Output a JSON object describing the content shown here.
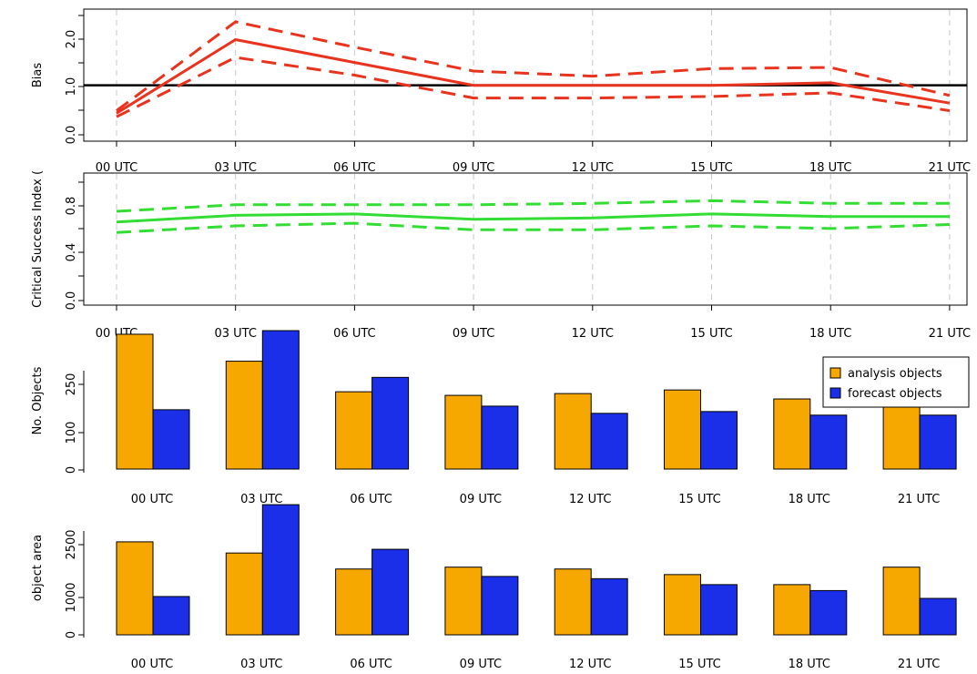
{
  "chart_data": [
    {
      "type": "line",
      "ylabel": "Bias",
      "x": [
        "00 UTC",
        "03 UTC",
        "06 UTC",
        "09 UTC",
        "12 UTC",
        "15 UTC",
        "18 UTC",
        "21 UTC"
      ],
      "ylim": [
        -0.1,
        2.5
      ],
      "yticks": [
        "0.0",
        "1.0",
        "2.0"
      ],
      "reference_line": 1.0,
      "grid": "vertical dashed",
      "series": [
        {
          "role": "mean",
          "values": [
            0.45,
            1.9,
            1.45,
            1.0,
            1.0,
            1.0,
            1.05,
            0.65
          ],
          "color": "#e8331e",
          "dash": false
        },
        {
          "role": "upper bound",
          "values": [
            0.5,
            2.25,
            1.75,
            1.28,
            1.18,
            1.33,
            1.35,
            0.8
          ],
          "color": "#e8331e",
          "dash": true
        },
        {
          "role": "lower bound",
          "values": [
            0.38,
            1.55,
            1.2,
            0.75,
            0.75,
            0.78,
            0.85,
            0.5
          ],
          "color": "#e8331e",
          "dash": true
        }
      ]
    },
    {
      "type": "line",
      "ylabel": "Critical Success Index (",
      "x": [
        "00 UTC",
        "03 UTC",
        "06 UTC",
        "09 UTC",
        "12 UTC",
        "15 UTC",
        "18 UTC",
        "21 UTC"
      ],
      "ylim": [
        -0.05,
        0.95
      ],
      "yticks": [
        "0.0",
        "0.4",
        "0.8"
      ],
      "grid": "vertical dashed",
      "series": [
        {
          "role": "mean",
          "values": [
            0.58,
            0.63,
            0.64,
            0.6,
            0.61,
            0.64,
            0.62,
            0.62
          ],
          "color": "#33dd33",
          "dash": false
        },
        {
          "role": "upper bound",
          "values": [
            0.66,
            0.71,
            0.71,
            0.71,
            0.72,
            0.74,
            0.72,
            0.72
          ],
          "color": "#33dd33",
          "dash": true
        },
        {
          "role": "lower bound",
          "values": [
            0.5,
            0.55,
            0.57,
            0.52,
            0.52,
            0.55,
            0.53,
            0.56
          ],
          "color": "#33dd33",
          "dash": true
        }
      ]
    },
    {
      "type": "bar",
      "ylabel": "No. Objects",
      "categories": [
        "00 UTC",
        "03 UTC",
        "06 UTC",
        "09 UTC",
        "12 UTC",
        "15 UTC",
        "18 UTC",
        "21 UTC"
      ],
      "ylim": [
        0,
        380
      ],
      "yticks": [
        "0",
        "100",
        "250"
      ],
      "legend": {
        "position": "top-right",
        "entries": [
          "analysis objects",
          "forecast objects"
        ]
      },
      "series": [
        {
          "name": "analysis objects",
          "values": [
            375,
            300,
            215,
            205,
            210,
            220,
            195,
            215
          ],
          "color": "#f7a800"
        },
        {
          "name": "forecast objects",
          "values": [
            165,
            385,
            255,
            175,
            155,
            160,
            150,
            150
          ],
          "color": "#1b2ee8"
        }
      ]
    },
    {
      "type": "bar",
      "ylabel": "object area",
      "categories": [
        "00 UTC",
        "03 UTC",
        "06 UTC",
        "09 UTC",
        "12 UTC",
        "15 UTC",
        "18 UTC",
        "21 UTC"
      ],
      "ylim": [
        0,
        3600
      ],
      "yticks": [
        "0",
        "1000",
        "2500"
      ],
      "series": [
        {
          "name": "analysis objects",
          "values": [
            2500,
            2200,
            1770,
            1820,
            1770,
            1620,
            1350,
            1820
          ],
          "color": "#f7a800"
        },
        {
          "name": "forecast objects",
          "values": [
            1030,
            3500,
            2300,
            1570,
            1510,
            1350,
            1190,
            980
          ],
          "color": "#1b2ee8"
        }
      ]
    }
  ],
  "colors": {
    "axis": "#000000",
    "grid": "#c8c8c8",
    "bar_outline": "#000000"
  }
}
